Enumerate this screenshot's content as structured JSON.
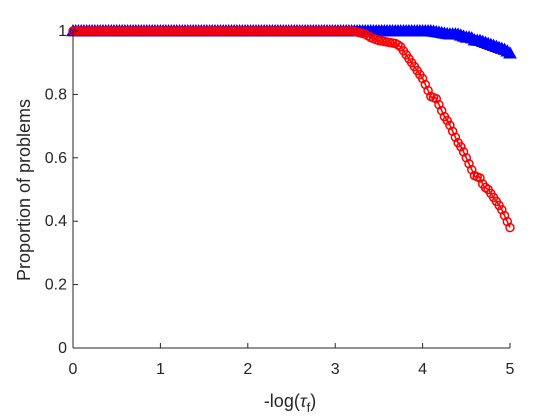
{
  "chart_data": {
    "type": "line",
    "title": "",
    "xlabel_base": "-log(",
    "xlabel_tau": "τ",
    "xlabel_sub": "f",
    "xlabel_close": ")",
    "ylabel": "Proportion of problems",
    "xlim": [
      0,
      5
    ],
    "ylim": [
      0,
      1
    ],
    "xticks": [
      0,
      1,
      2,
      3,
      4,
      5
    ],
    "yticks": [
      0,
      0.2,
      0.4,
      0.6,
      0.8,
      1
    ],
    "xtick_labels": [
      "0",
      "1",
      "2",
      "3",
      "4",
      "5"
    ],
    "ytick_labels": [
      "0",
      "0.2",
      "0.4",
      "0.6",
      "0.8",
      "1"
    ],
    "grid": false,
    "series": [
      {
        "color": "#0000ff",
        "marker": "triangle-up",
        "x": [
          0,
          0.5,
          1,
          1.5,
          2,
          2.5,
          3,
          3.3,
          3.6,
          3.9,
          4.0,
          4.1,
          4.2,
          4.3,
          4.4,
          4.45,
          4.5,
          4.55,
          4.6,
          4.65,
          4.7,
          4.75,
          4.8,
          4.85,
          4.9,
          4.95,
          5.0
        ],
        "y": [
          1.0,
          1.0,
          1.0,
          1.0,
          1.0,
          1.0,
          1.0,
          1.0,
          1.0,
          1.0,
          1.0,
          1.0,
          0.995,
          0.99,
          0.99,
          0.985,
          0.98,
          0.98,
          0.97,
          0.97,
          0.965,
          0.96,
          0.955,
          0.95,
          0.945,
          0.94,
          0.93
        ]
      },
      {
        "color": "#ff0000",
        "marker": "circle",
        "x": [
          0,
          0.5,
          1,
          1.5,
          2,
          2.5,
          3,
          3.2,
          3.35,
          3.4,
          3.5,
          3.6,
          3.7,
          3.75,
          3.8,
          3.85,
          3.9,
          3.95,
          4.0,
          4.05,
          4.1,
          4.15,
          4.2,
          4.25,
          4.3,
          4.35,
          4.4,
          4.45,
          4.5,
          4.55,
          4.6,
          4.65,
          4.7,
          4.75,
          4.8,
          4.85,
          4.9,
          4.95,
          5.0
        ],
        "y": [
          1.0,
          1.0,
          1.0,
          1.0,
          1.0,
          1.0,
          1.0,
          1.0,
          0.99,
          0.98,
          0.97,
          0.965,
          0.96,
          0.95,
          0.93,
          0.91,
          0.89,
          0.87,
          0.85,
          0.82,
          0.79,
          0.79,
          0.76,
          0.73,
          0.71,
          0.68,
          0.65,
          0.63,
          0.6,
          0.57,
          0.54,
          0.54,
          0.51,
          0.5,
          0.48,
          0.46,
          0.44,
          0.41,
          0.38
        ]
      }
    ]
  }
}
